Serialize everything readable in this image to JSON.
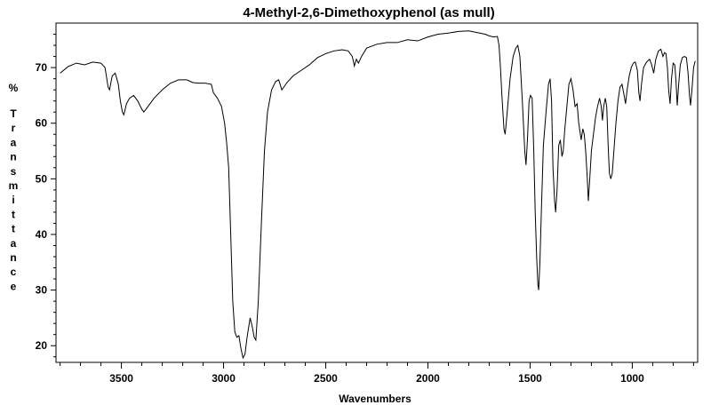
{
  "chart_data": {
    "type": "line",
    "title": "4-Methyl-2,6-Dimethoxyphenol (as mull)",
    "xlabel": "Wavenumbers",
    "ylabel": "% Transmittance",
    "xlim": [
      3820,
      680
    ],
    "ylim": [
      17,
      78
    ],
    "x_reversed": true,
    "grid": false,
    "x_ticks": [
      3500,
      3000,
      2500,
      2000,
      1500,
      1000
    ],
    "y_ticks": [
      20,
      30,
      40,
      50,
      60,
      70
    ],
    "series": [
      {
        "color": "#000000",
        "points": [
          [
            3800,
            69.0
          ],
          [
            3760,
            70.2
          ],
          [
            3720,
            70.8
          ],
          [
            3680,
            70.5
          ],
          [
            3640,
            71.0
          ],
          [
            3600,
            70.8
          ],
          [
            3580,
            70.0
          ],
          [
            3565,
            66.5
          ],
          [
            3558,
            66.0
          ],
          [
            3545,
            68.5
          ],
          [
            3530,
            69.0
          ],
          [
            3515,
            67.0
          ],
          [
            3505,
            64.0
          ],
          [
            3495,
            62.0
          ],
          [
            3488,
            61.5
          ],
          [
            3475,
            63.5
          ],
          [
            3460,
            64.5
          ],
          [
            3440,
            65.0
          ],
          [
            3420,
            64.0
          ],
          [
            3400,
            62.5
          ],
          [
            3390,
            62.0
          ],
          [
            3370,
            63.0
          ],
          [
            3340,
            64.5
          ],
          [
            3300,
            66.0
          ],
          [
            3260,
            67.2
          ],
          [
            3220,
            67.8
          ],
          [
            3180,
            67.8
          ],
          [
            3150,
            67.3
          ],
          [
            3120,
            67.2
          ],
          [
            3090,
            67.2
          ],
          [
            3060,
            67.0
          ],
          [
            3050,
            65.5
          ],
          [
            3030,
            64.5
          ],
          [
            3010,
            63.0
          ],
          [
            2995,
            60.0
          ],
          [
            2985,
            56.5
          ],
          [
            2975,
            52.0
          ],
          [
            2965,
            40.0
          ],
          [
            2955,
            28.0
          ],
          [
            2945,
            22.5
          ],
          [
            2935,
            21.5
          ],
          [
            2925,
            21.8
          ],
          [
            2915,
            19.5
          ],
          [
            2905,
            17.8
          ],
          [
            2895,
            18.5
          ],
          [
            2885,
            21.5
          ],
          [
            2870,
            25.0
          ],
          [
            2860,
            23.5
          ],
          [
            2850,
            21.5
          ],
          [
            2842,
            21.0
          ],
          [
            2830,
            28.0
          ],
          [
            2815,
            42.0
          ],
          [
            2800,
            55.0
          ],
          [
            2785,
            62.0
          ],
          [
            2765,
            66.0
          ],
          [
            2745,
            67.5
          ],
          [
            2730,
            67.8
          ],
          [
            2715,
            66.0
          ],
          [
            2705,
            66.5
          ],
          [
            2690,
            67.3
          ],
          [
            2660,
            68.5
          ],
          [
            2620,
            69.5
          ],
          [
            2580,
            70.5
          ],
          [
            2540,
            71.8
          ],
          [
            2500,
            72.5
          ],
          [
            2460,
            73.0
          ],
          [
            2420,
            73.2
          ],
          [
            2390,
            73.0
          ],
          [
            2370,
            72.0
          ],
          [
            2360,
            70.3
          ],
          [
            2350,
            71.5
          ],
          [
            2340,
            70.8
          ],
          [
            2325,
            72.0
          ],
          [
            2300,
            73.5
          ],
          [
            2250,
            74.2
          ],
          [
            2200,
            74.5
          ],
          [
            2150,
            74.5
          ],
          [
            2100,
            75.0
          ],
          [
            2050,
            74.8
          ],
          [
            2000,
            75.5
          ],
          [
            1950,
            76.0
          ],
          [
            1900,
            76.2
          ],
          [
            1850,
            76.5
          ],
          [
            1800,
            76.6
          ],
          [
            1760,
            76.3
          ],
          [
            1720,
            76.0
          ],
          [
            1700,
            75.7
          ],
          [
            1680,
            75.5
          ],
          [
            1660,
            75.6
          ],
          [
            1652,
            74.0
          ],
          [
            1645,
            70.0
          ],
          [
            1638,
            65.0
          ],
          [
            1628,
            59.0
          ],
          [
            1622,
            58.0
          ],
          [
            1612,
            62.0
          ],
          [
            1598,
            68.0
          ],
          [
            1583,
            72.0
          ],
          [
            1570,
            73.5
          ],
          [
            1560,
            74.0
          ],
          [
            1550,
            72.0
          ],
          [
            1538,
            64.0
          ],
          [
            1526,
            55.0
          ],
          [
            1520,
            52.5
          ],
          [
            1513,
            57.0
          ],
          [
            1505,
            64.0
          ],
          [
            1498,
            65.0
          ],
          [
            1490,
            64.5
          ],
          [
            1482,
            55.0
          ],
          [
            1475,
            44.0
          ],
          [
            1468,
            36.0
          ],
          [
            1462,
            31.0
          ],
          [
            1458,
            30.0
          ],
          [
            1452,
            35.0
          ],
          [
            1445,
            44.0
          ],
          [
            1435,
            56.0
          ],
          [
            1422,
            62.0
          ],
          [
            1410,
            67.0
          ],
          [
            1402,
            68.0
          ],
          [
            1395,
            64.0
          ],
          [
            1388,
            52.0
          ],
          [
            1380,
            46.0
          ],
          [
            1375,
            44.0
          ],
          [
            1368,
            48.0
          ],
          [
            1360,
            56.0
          ],
          [
            1352,
            57.0
          ],
          [
            1344,
            54.0
          ],
          [
            1338,
            55.0
          ],
          [
            1330,
            59.0
          ],
          [
            1320,
            63.0
          ],
          [
            1310,
            67.0
          ],
          [
            1300,
            68.0
          ],
          [
            1290,
            66.0
          ],
          [
            1280,
            63.0
          ],
          [
            1270,
            63.5
          ],
          [
            1262,
            60.0
          ],
          [
            1250,
            57.0
          ],
          [
            1242,
            59.0
          ],
          [
            1235,
            58.0
          ],
          [
            1228,
            55.0
          ],
          [
            1220,
            50.0
          ],
          [
            1215,
            46.0
          ],
          [
            1208,
            50.0
          ],
          [
            1200,
            55.0
          ],
          [
            1190,
            58.0
          ],
          [
            1180,
            61.0
          ],
          [
            1170,
            63.0
          ],
          [
            1160,
            64.5
          ],
          [
            1152,
            63.0
          ],
          [
            1146,
            60.5
          ],
          [
            1140,
            63.0
          ],
          [
            1132,
            64.5
          ],
          [
            1125,
            63.0
          ],
          [
            1118,
            56.0
          ],
          [
            1112,
            51.0
          ],
          [
            1105,
            50.0
          ],
          [
            1098,
            51.0
          ],
          [
            1090,
            55.0
          ],
          [
            1080,
            60.0
          ],
          [
            1070,
            64.0
          ],
          [
            1060,
            66.5
          ],
          [
            1050,
            67.0
          ],
          [
            1040,
            65.0
          ],
          [
            1033,
            63.5
          ],
          [
            1025,
            66.0
          ],
          [
            1015,
            68.5
          ],
          [
            1005,
            70.0
          ],
          [
            995,
            70.8
          ],
          [
            985,
            71.0
          ],
          [
            975,
            69.5
          ],
          [
            968,
            65.5
          ],
          [
            962,
            64.0
          ],
          [
            955,
            67.0
          ],
          [
            945,
            70.0
          ],
          [
            930,
            71.0
          ],
          [
            915,
            71.5
          ],
          [
            905,
            70.5
          ],
          [
            895,
            69.0
          ],
          [
            885,
            71.5
          ],
          [
            872,
            73.0
          ],
          [
            860,
            73.3
          ],
          [
            850,
            72.0
          ],
          [
            842,
            72.7
          ],
          [
            835,
            72.5
          ],
          [
            828,
            70.0
          ],
          [
            822,
            66.0
          ],
          [
            815,
            63.5
          ],
          [
            808,
            68.0
          ],
          [
            800,
            70.8
          ],
          [
            792,
            70.5
          ],
          [
            786,
            67.5
          ],
          [
            780,
            63.2
          ],
          [
            773,
            67.0
          ],
          [
            765,
            70.5
          ],
          [
            755,
            71.8
          ],
          [
            745,
            72.0
          ],
          [
            735,
            71.8
          ],
          [
            727,
            69.0
          ],
          [
            720,
            65.0
          ],
          [
            715,
            63.2
          ],
          [
            708,
            66.0
          ],
          [
            700,
            70.0
          ],
          [
            692,
            71.2
          ]
        ]
      }
    ]
  }
}
